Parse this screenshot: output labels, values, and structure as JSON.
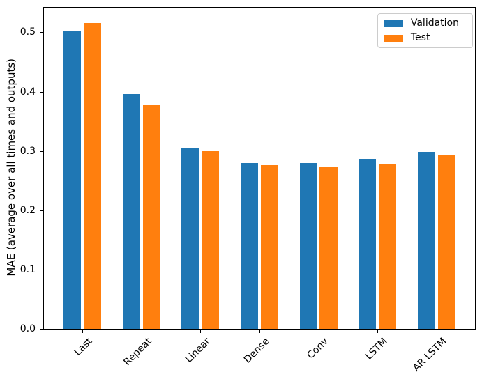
{
  "chart_data": {
    "type": "bar",
    "title": "",
    "xlabel": "",
    "ylabel": "MAE (average over all times and outputs)",
    "categories": [
      "Last",
      "Repeat",
      "Linear",
      "Dense",
      "Conv",
      "LSTM",
      "AR LSTM"
    ],
    "series": [
      {
        "name": "Validation",
        "color": "#1f77b4",
        "values": [
          0.5012,
          0.3954,
          0.3059,
          0.28,
          0.2801,
          0.2866,
          0.2981
        ]
      },
      {
        "name": "Test",
        "color": "#ff7f0e",
        "values": [
          0.5157,
          0.3774,
          0.2995,
          0.2766,
          0.2743,
          0.2772,
          0.2923
        ]
      }
    ],
    "bar_width": 0.3,
    "bar_offsets": [
      -0.17,
      0.17
    ],
    "ylim": [
      0,
      0.5415
    ],
    "xlim": [
      -0.652,
      6.652
    ],
    "yticks": [
      0.0,
      0.1,
      0.2,
      0.3,
      0.4,
      0.5
    ],
    "ytick_labels": [
      "0.0",
      "0.1",
      "0.2",
      "0.3",
      "0.4",
      "0.5"
    ],
    "xtick_rotation": 45,
    "legend_position": "upper right",
    "legend_labels": [
      "Validation",
      "Test"
    ],
    "grid": false
  }
}
